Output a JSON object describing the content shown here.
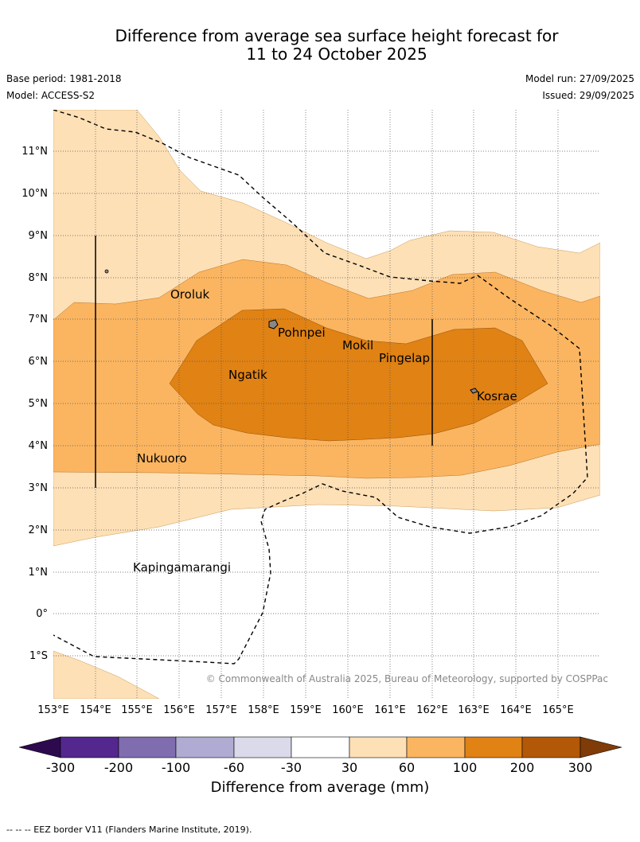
{
  "title": {
    "line1": "Difference from average sea surface height forecast for",
    "line2": "11 to 24 October 2025"
  },
  "meta": {
    "base_period": "Base period: 1981-2018",
    "model": "Model: ACCESS-S2",
    "model_run": "Model run: 27/09/2025",
    "issued": "Issued: 29/09/2025"
  },
  "map": {
    "lon_labels": [
      "153°E",
      "154°E",
      "155°E",
      "156°E",
      "157°E",
      "158°E",
      "159°E",
      "160°E",
      "161°E",
      "162°E",
      "163°E",
      "164°E",
      "165°E"
    ],
    "lat_labels": [
      "11°N",
      "10°N",
      "9°N",
      "8°N",
      "7°N",
      "6°N",
      "5°N",
      "4°N",
      "3°N",
      "2°N",
      "1°N",
      "0°",
      "1°S"
    ],
    "places": [
      {
        "name": "Oroluk",
        "lon": 155.8,
        "lat": 7.6
      },
      {
        "name": "Pohnpei",
        "lon": 158.2,
        "lat": 6.9
      },
      {
        "name": "Mokil",
        "lon": 159.8,
        "lat": 6.7
      },
      {
        "name": "Pingelap",
        "lon": 160.7,
        "lat": 6.2
      },
      {
        "name": "Ngatik",
        "lon": 157.2,
        "lat": 5.8
      },
      {
        "name": "Kosrae",
        "lon": 163.0,
        "lat": 5.3
      },
      {
        "name": "Nukuoro",
        "lon": 155.0,
        "lat": 3.85
      },
      {
        "name": "Kapingamarangi",
        "lon": 154.9,
        "lat": 1.2
      }
    ],
    "copyright": "© Commonwealth of Australia 2025, Bureau of Meteorology, supported by COSPPac"
  },
  "colorbar": {
    "ticks": [
      "-300",
      "-200",
      "-100",
      "-60",
      "-30",
      "30",
      "60",
      "100",
      "200",
      "300"
    ],
    "colors": [
      "#2d0a4e",
      "#54278f",
      "#7f6daf",
      "#b0abd2",
      "#dadaeb",
      "#ffffff",
      "#fee0b6",
      "#fbb560",
      "#e08214",
      "#b35806",
      "#7f3b08"
    ],
    "label": "Difference from average (mm)"
  },
  "footer": "--  --  -- EEZ border V11 (Flanders Marine Institute, 2019)."
}
